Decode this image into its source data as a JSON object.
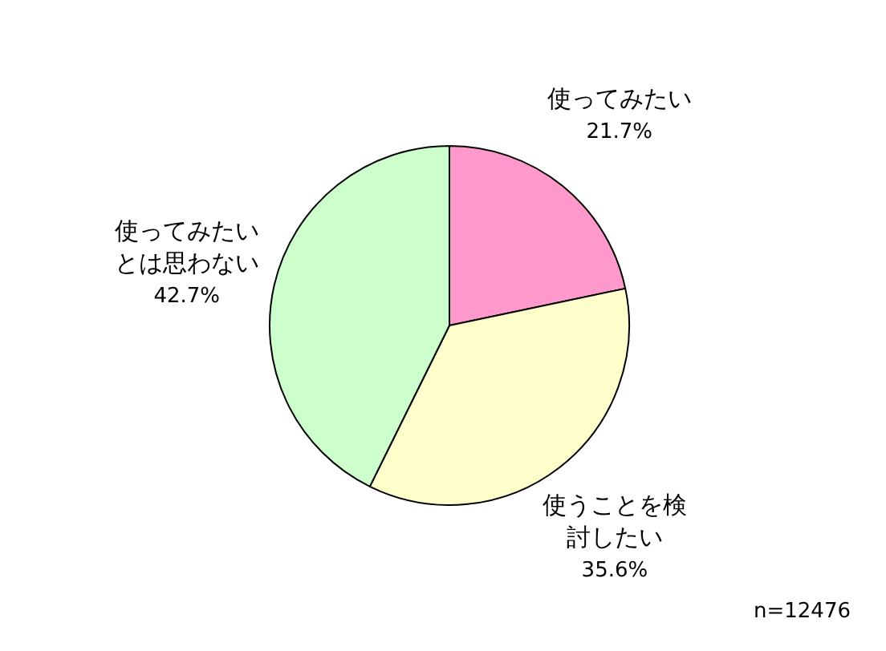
{
  "chart_data": {
    "type": "pie",
    "categories": [
      "使ってみたい",
      "使うことを検討したい",
      "使ってみたいとは思わない"
    ],
    "values": [
      21.7,
      35.6,
      42.7
    ],
    "colors": [
      "#ff99cc",
      "#ffffcc",
      "#ccffcc"
    ],
    "value_labels": [
      "21.7%",
      "35.6%",
      "42.7%"
    ],
    "annotations": [
      "n=12476"
    ],
    "legend": false
  }
}
